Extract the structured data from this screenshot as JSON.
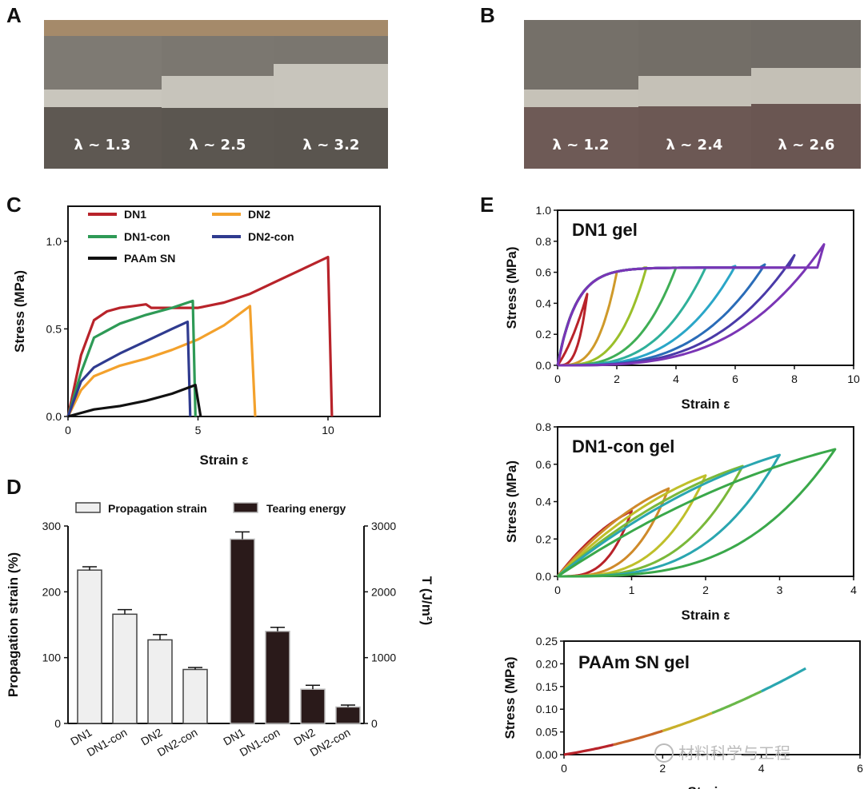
{
  "panel_labels": {
    "a": "A",
    "b": "B",
    "c": "C",
    "d": "D",
    "e": "E"
  },
  "photos_a": [
    "λ ~ 1.3",
    "λ ~ 2.5",
    "λ ~ 3.2"
  ],
  "photos_b": [
    "λ ~ 1.2",
    "λ ~ 2.4",
    "λ ~ 2.6"
  ],
  "colors": {
    "DN1": "#b8232a",
    "DN1-con": "#2e9a56",
    "DN2": "#f3a12c",
    "DN2-con": "#2f3b8f",
    "PAAm SN": "#111111",
    "bar_light": "#efefef",
    "bar_dark": "#2a1a1a"
  },
  "watermark": "材料科学与工程",
  "chart_data": [
    {
      "id": "C",
      "type": "line",
      "xlabel": "Strain ε",
      "ylabel": "Stress (MPa)",
      "xlim": [
        0,
        12
      ],
      "ylim": [
        0,
        1.2
      ],
      "xticks": [
        "0",
        "5",
        "10"
      ],
      "xtick_values": [
        0,
        5,
        10
      ],
      "yticks": [
        "0.0",
        "0.5",
        "1.0"
      ],
      "ytick_values": [
        0,
        0.5,
        1.0
      ],
      "series": [
        {
          "name": "DN1",
          "points": [
            [
              0,
              0
            ],
            [
              0.5,
              0.35
            ],
            [
              1,
              0.55
            ],
            [
              1.5,
              0.6
            ],
            [
              2,
              0.62
            ],
            [
              2.5,
              0.63
            ],
            [
              3,
              0.64
            ],
            [
              3.2,
              0.62
            ],
            [
              4,
              0.62
            ],
            [
              5,
              0.62
            ],
            [
              6,
              0.65
            ],
            [
              7,
              0.7
            ],
            [
              8,
              0.77
            ],
            [
              9,
              0.84
            ],
            [
              10,
              0.91
            ],
            [
              10.15,
              0.0
            ]
          ]
        },
        {
          "name": "DN2",
          "points": [
            [
              0,
              0
            ],
            [
              0.5,
              0.15
            ],
            [
              1,
              0.23
            ],
            [
              2,
              0.29
            ],
            [
              3,
              0.33
            ],
            [
              4,
              0.38
            ],
            [
              5,
              0.44
            ],
            [
              6,
              0.52
            ],
            [
              7,
              0.63
            ],
            [
              7.2,
              0.0
            ]
          ]
        },
        {
          "name": "DN1-con",
          "points": [
            [
              0,
              0
            ],
            [
              0.5,
              0.25
            ],
            [
              1,
              0.45
            ],
            [
              2,
              0.53
            ],
            [
              3,
              0.58
            ],
            [
              4,
              0.62
            ],
            [
              4.8,
              0.66
            ],
            [
              4.9,
              0.0
            ]
          ]
        },
        {
          "name": "DN2-con",
          "points": [
            [
              0,
              0
            ],
            [
              0.5,
              0.2
            ],
            [
              1,
              0.28
            ],
            [
              2,
              0.36
            ],
            [
              3,
              0.43
            ],
            [
              4,
              0.5
            ],
            [
              4.6,
              0.54
            ],
            [
              4.7,
              0.0
            ]
          ]
        },
        {
          "name": "PAAm SN",
          "points": [
            [
              0,
              0
            ],
            [
              1,
              0.04
            ],
            [
              2,
              0.06
            ],
            [
              3,
              0.09
            ],
            [
              4,
              0.13
            ],
            [
              4.9,
              0.18
            ],
            [
              5.1,
              0.0
            ]
          ]
        }
      ]
    },
    {
      "id": "D",
      "type": "bar",
      "legend": [
        "Propagation strain",
        "Tearing energy"
      ],
      "ylabel": "Propagation strain (%)",
      "y2label": "T (J/m²)",
      "ylim": [
        0,
        300
      ],
      "y2lim": [
        0,
        3000
      ],
      "yticks": [
        "0",
        "100",
        "200",
        "300"
      ],
      "ytick_values": [
        0,
        100,
        200,
        300
      ],
      "y2ticks": [
        "0",
        "1000",
        "2000",
        "3000"
      ],
      "y2tick_values": [
        0,
        1000,
        2000,
        3000
      ],
      "categories": [
        "DN1",
        "DN1-con",
        "DN2",
        "DN2-con"
      ],
      "series": [
        {
          "name": "Propagation strain",
          "values": [
            233,
            166,
            127,
            82
          ],
          "errors": [
            5,
            7,
            8,
            3
          ]
        },
        {
          "name": "Tearing energy",
          "values": [
            2800,
            1400,
            520,
            250
          ],
          "errors": [
            110,
            60,
            60,
            30
          ]
        }
      ]
    },
    {
      "id": "E1",
      "type": "line",
      "title": "DN1 gel",
      "xlabel": "Strain ε",
      "ylabel": "Stress (MPa)",
      "xlim": [
        0,
        10
      ],
      "ylim": [
        0,
        1.0
      ],
      "xticks": [
        "0",
        "2",
        "4",
        "6",
        "8",
        "10"
      ],
      "xtick_values": [
        0,
        2,
        4,
        6,
        8,
        10
      ],
      "yticks": [
        "0.0",
        "0.2",
        "0.4",
        "0.6",
        "0.8",
        "1.0"
      ],
      "ytick_values": [
        0,
        0.2,
        0.4,
        0.6,
        0.8,
        1.0
      ],
      "cycles": [
        {
          "max_strain": 1,
          "peak": 0.46,
          "color": "#b8232a"
        },
        {
          "max_strain": 2,
          "peak": 0.6,
          "color": "#cf9a2a"
        },
        {
          "max_strain": 3,
          "peak": 0.63,
          "color": "#9abf2a"
        },
        {
          "max_strain": 4,
          "peak": 0.63,
          "color": "#3fae55"
        },
        {
          "max_strain": 5,
          "peak": 0.63,
          "color": "#2fb09a"
        },
        {
          "max_strain": 6,
          "peak": 0.64,
          "color": "#2aa6c8"
        },
        {
          "max_strain": 7,
          "peak": 0.65,
          "color": "#2a6cb8"
        },
        {
          "max_strain": 8,
          "peak": 0.71,
          "color": "#4a3aa8"
        },
        {
          "max_strain": 9,
          "peak": 0.78,
          "color": "#7a35b5"
        }
      ]
    },
    {
      "id": "E2",
      "type": "line",
      "title": "DN1-con gel",
      "xlabel": "Strain ε",
      "ylabel": "Stress (MPa)",
      "xlim": [
        0,
        4
      ],
      "ylim": [
        0,
        0.8
      ],
      "xticks": [
        "0",
        "1",
        "2",
        "3",
        "4"
      ],
      "xtick_values": [
        0,
        1,
        2,
        3,
        4
      ],
      "yticks": [
        "0.0",
        "0.2",
        "0.4",
        "0.6",
        "0.8"
      ],
      "ytick_values": [
        0,
        0.2,
        0.4,
        0.6,
        0.8
      ],
      "cycles": [
        {
          "max_strain": 1,
          "peak": 0.35,
          "color": "#b8232a"
        },
        {
          "max_strain": 1.5,
          "peak": 0.47,
          "color": "#cf8a2a"
        },
        {
          "max_strain": 2,
          "peak": 0.54,
          "color": "#bfbf2a"
        },
        {
          "max_strain": 2.5,
          "peak": 0.59,
          "color": "#7ab83a"
        },
        {
          "max_strain": 3,
          "peak": 0.65,
          "color": "#2aa6b0"
        },
        {
          "max_strain": 3.75,
          "peak": 0.68,
          "color": "#3aa84a"
        }
      ]
    },
    {
      "id": "E3",
      "type": "line",
      "title": "PAAm SN gel",
      "xlabel": "Strain ε",
      "ylabel": "Stress (MPa)",
      "xlim": [
        0,
        6
      ],
      "ylim": [
        0,
        0.25
      ],
      "xticks": [
        "0",
        "2",
        "4",
        "6"
      ],
      "xtick_values": [
        0,
        2,
        4,
        6
      ],
      "yticks": [
        "0.00",
        "0.05",
        "0.10",
        "0.15",
        "0.20",
        "0.25"
      ],
      "ytick_values": [
        0,
        0.05,
        0.1,
        0.15,
        0.2,
        0.25
      ],
      "segments": [
        {
          "from": 0,
          "to": 1,
          "color": "#b8232a"
        },
        {
          "from": 1,
          "to": 2,
          "color": "#c8662a"
        },
        {
          "from": 2,
          "to": 3,
          "color": "#c8b02a"
        },
        {
          "from": 3,
          "to": 4,
          "color": "#6ab84a"
        },
        {
          "from": 4,
          "to": 4.9,
          "color": "#2aa6b0"
        }
      ],
      "max_strain": 4.9,
      "peak": 0.19
    }
  ]
}
